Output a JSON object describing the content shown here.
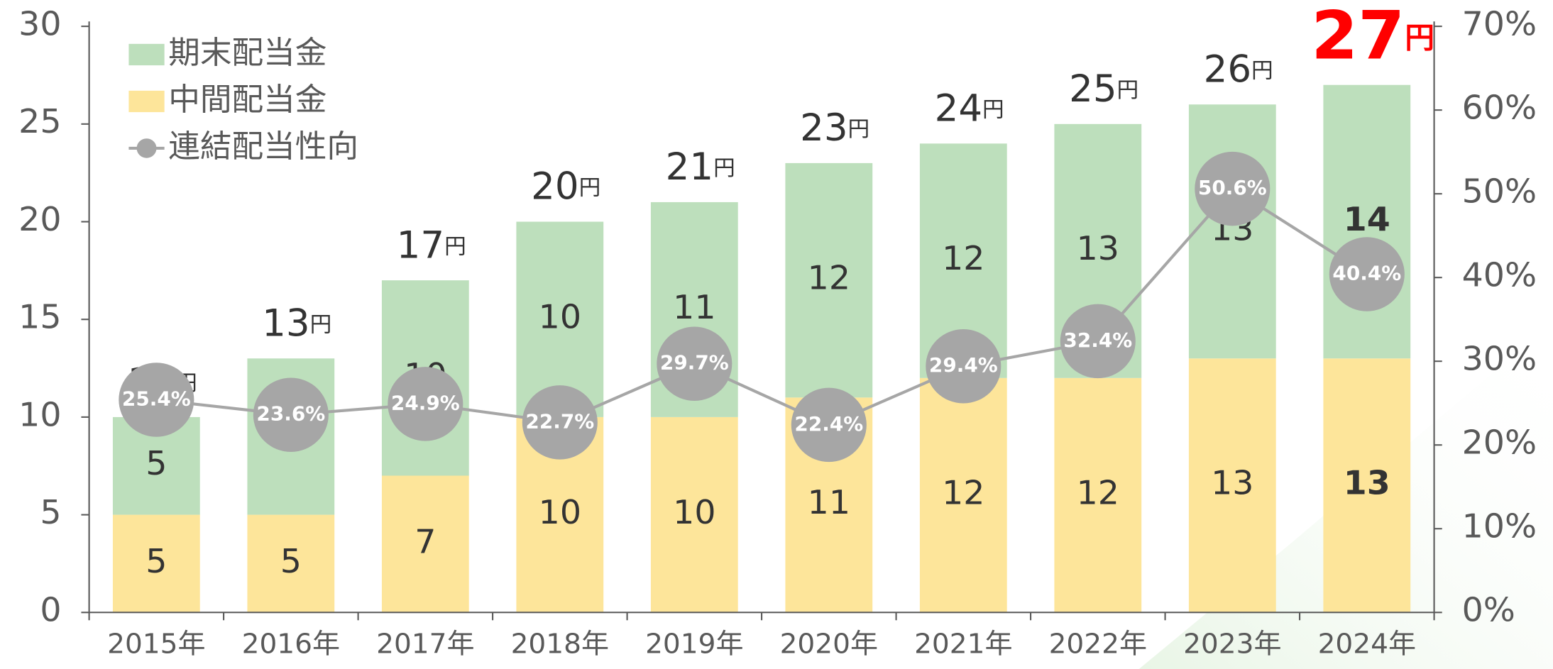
{
  "chart_data": {
    "type": "bar",
    "stacked": true,
    "categories": [
      "2015年",
      "2016年",
      "2017年",
      "2018年",
      "2019年",
      "2020年",
      "2021年",
      "2022年",
      "2023年",
      "2024年"
    ],
    "series": [
      {
        "name": "期末配当金",
        "color": "#bddfbc",
        "values": [
          5,
          8,
          10,
          10,
          11,
          12,
          12,
          13,
          13,
          14
        ]
      },
      {
        "name": "中間配当金",
        "color": "#fde59a",
        "values": [
          5,
          5,
          7,
          10,
          10,
          11,
          12,
          12,
          13,
          13
        ]
      },
      {
        "name": "連結配当性向",
        "type": "line",
        "axis": "y2",
        "color": "#a6a6a6",
        "values": [
          25.4,
          23.6,
          24.9,
          22.7,
          29.7,
          22.4,
          29.4,
          32.4,
          50.6,
          40.4
        ],
        "value_labels": [
          "25.4%",
          "23.6%",
          "24.9%",
          "22.7%",
          "29.7%",
          "22.4%",
          "29.4%",
          "32.4%",
          "50.6%",
          "40.4%"
        ]
      }
    ],
    "totals": [
      10,
      13,
      17,
      20,
      21,
      23,
      24,
      25,
      26,
      27
    ],
    "total_unit": "円",
    "ylim": [
      0,
      30
    ],
    "yticks": [
      0,
      5,
      10,
      15,
      20,
      25,
      30
    ],
    "y2lim": [
      0,
      70
    ],
    "y2ticks": [
      {
        "value": 0,
        "label": "0%"
      },
      {
        "value": 10,
        "label": "10%"
      },
      {
        "value": 20,
        "label": "20%"
      },
      {
        "value": 30,
        "label": "30%"
      },
      {
        "value": 40,
        "label": "40%"
      },
      {
        "value": 50,
        "label": "50%"
      },
      {
        "value": 60,
        "label": "60%"
      },
      {
        "value": 70,
        "label": "70%"
      }
    ],
    "legend": "upper left"
  }
}
